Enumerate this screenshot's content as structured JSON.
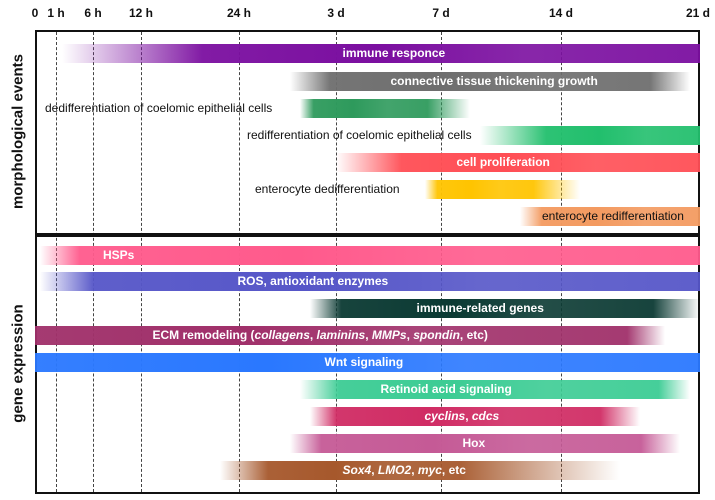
{
  "time_axis": {
    "ticks": [
      "0",
      "1 h",
      "6 h",
      "12 h",
      "24 h",
      "3 d",
      "7 d",
      "14 d",
      "21 d"
    ]
  },
  "sections": {
    "top_label": "morphological events",
    "bottom_label": "gene expression"
  },
  "morphological_events": [
    {
      "label": "immune responce",
      "color": "#7b0fa0"
    },
    {
      "label": "connective tissue thickening growth",
      "color": "#6e6e6e"
    },
    {
      "label": "dedifferentiation of coelomic epithelial cells",
      "color": "#2e9a5c"
    },
    {
      "label": "redifferentiation of coelomic epithelial cells",
      "color": "#22bf6d"
    },
    {
      "label": "cell proliferation",
      "color": "#ff4e55"
    },
    {
      "label": "enterocyte dedifferentiation",
      "color": "#ffc400"
    },
    {
      "label": "enterocyte redifferentiation",
      "color": "#f39a60"
    }
  ],
  "gene_expression": [
    {
      "label": "HSPs",
      "color": "#ff5a8c"
    },
    {
      "label": "ROS, antioxidant enzymes",
      "color": "#5656c8"
    },
    {
      "label": "immune-related genes",
      "color": "#0b3a33"
    },
    {
      "label_parts": [
        "ECM remodeling (",
        "collagens",
        ", ",
        "laminins",
        ", ",
        "MMPs",
        ", ",
        "spondin",
        ", etc)"
      ],
      "color": "#a0306a"
    },
    {
      "label": "Wnt signaling",
      "color": "#2a78ff"
    },
    {
      "label": "Retinoid acid signaling",
      "color": "#3ccc94"
    },
    {
      "label_parts": [
        "cyclins",
        ", ",
        "cdcs"
      ],
      "color": "#d02c64"
    },
    {
      "label": "Hox",
      "color": "#c55a96"
    },
    {
      "label_parts": [
        "Sox4",
        ", ",
        "LMO2",
        ", ",
        "myc",
        ", etc"
      ],
      "color": "#a6582c"
    }
  ]
}
